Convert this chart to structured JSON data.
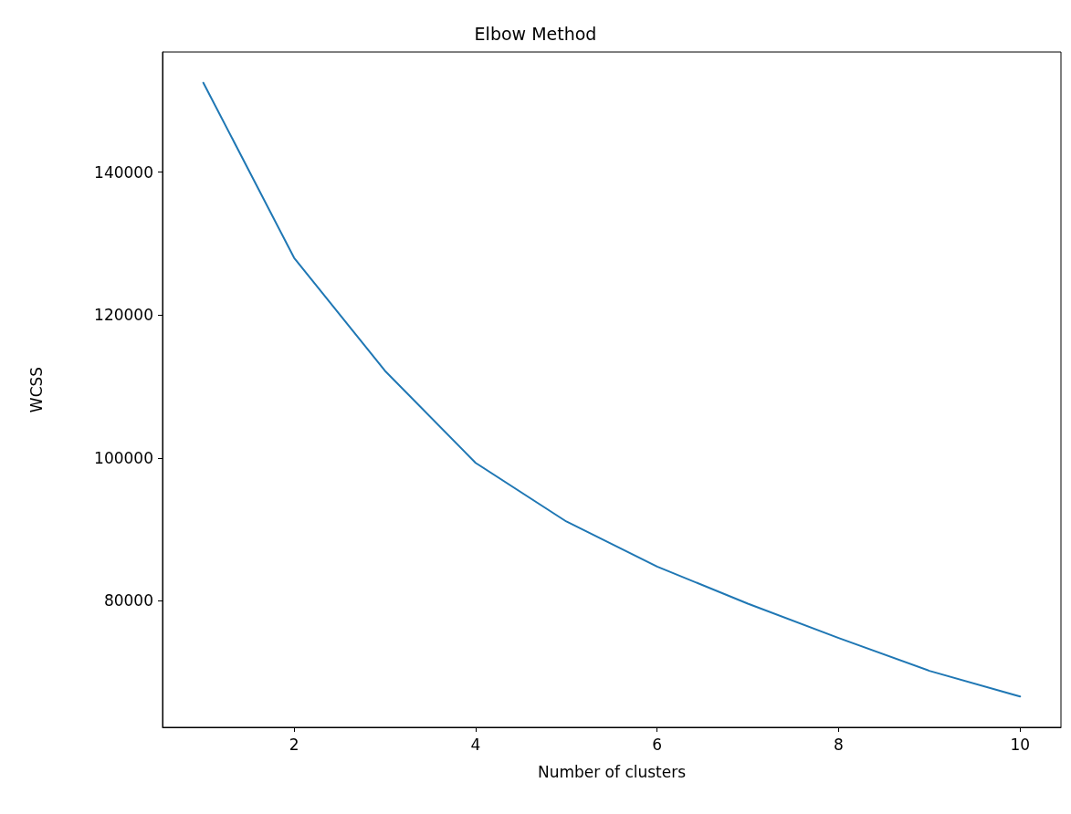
{
  "chart_data": {
    "type": "line",
    "title": "Elbow Method",
    "xlabel": "Number of clusters",
    "ylabel": "WCSS",
    "x": [
      1,
      2,
      3,
      4,
      5,
      6,
      7,
      8,
      9,
      10
    ],
    "series": [
      {
        "color": "#1f77b4",
        "values": [
          152500,
          128000,
          112200,
          99300,
          91100,
          84800,
          79600,
          74800,
          70200,
          66600
        ]
      }
    ],
    "xlim": [
      0.55,
      10.45
    ],
    "xticks": [
      2,
      4,
      6,
      8,
      10
    ],
    "ylim": [
      62300,
      156800
    ],
    "yticks": [
      80000,
      100000,
      120000,
      140000
    ],
    "grid": false,
    "marker": "none",
    "line_style": "solid"
  }
}
